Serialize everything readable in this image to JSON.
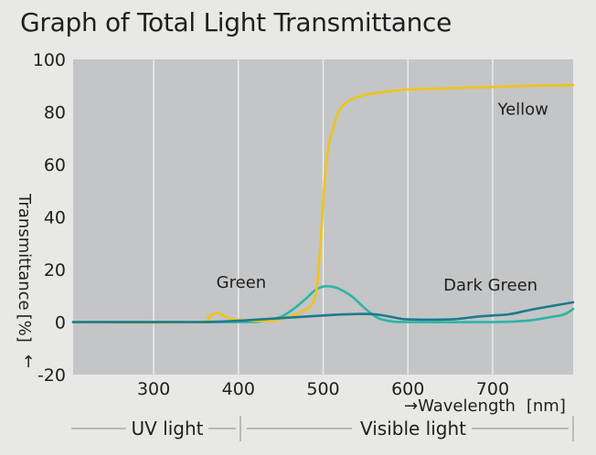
{
  "chart_data": {
    "type": "line",
    "title": "Graph of Total Light Transmittance",
    "xlabel": "→Wavelength",
    "xunit": "[nm]",
    "ylabel": "Transmittance",
    "yunit": "[%]",
    "ylabel_arrow": "↑",
    "xlim": [
      205,
      795
    ],
    "ylim": [
      -20,
      100
    ],
    "xticks": [
      300,
      400,
      500,
      600,
      700
    ],
    "yticks": [
      -20,
      0,
      20,
      40,
      60,
      80,
      100
    ],
    "grid": "vertical",
    "regions": [
      {
        "label": "UV light",
        "from": 205,
        "to": 400
      },
      {
        "label": "Visible light",
        "from": 400,
        "to": 795
      }
    ],
    "series": [
      {
        "name": "Yellow",
        "color": "#f0c419",
        "points": [
          [
            205,
            0
          ],
          [
            350,
            0
          ],
          [
            365,
            2
          ],
          [
            375,
            3.5
          ],
          [
            385,
            2
          ],
          [
            395,
            1
          ],
          [
            420,
            0.5
          ],
          [
            440,
            0.5
          ],
          [
            460,
            2
          ],
          [
            475,
            4
          ],
          [
            485,
            6
          ],
          [
            492,
            12
          ],
          [
            497,
            30
          ],
          [
            502,
            55
          ],
          [
            507,
            68
          ],
          [
            512,
            74
          ],
          [
            518,
            80
          ],
          [
            525,
            83
          ],
          [
            535,
            85
          ],
          [
            550,
            86.5
          ],
          [
            570,
            87.5
          ],
          [
            600,
            88.5
          ],
          [
            650,
            89
          ],
          [
            700,
            89.5
          ],
          [
            750,
            90
          ],
          [
            795,
            90.2
          ]
        ]
      },
      {
        "name": "Green",
        "color": "#2bb5a6",
        "points": [
          [
            205,
            0
          ],
          [
            400,
            0
          ],
          [
            430,
            0.5
          ],
          [
            450,
            2
          ],
          [
            465,
            5
          ],
          [
            480,
            9
          ],
          [
            490,
            12
          ],
          [
            500,
            13.5
          ],
          [
            510,
            13.5
          ],
          [
            520,
            12.5
          ],
          [
            535,
            9.5
          ],
          [
            550,
            5
          ],
          [
            565,
            1.5
          ],
          [
            580,
            0.3
          ],
          [
            600,
            0
          ],
          [
            700,
            0
          ],
          [
            740,
            0.5
          ],
          [
            770,
            2
          ],
          [
            785,
            3
          ],
          [
            795,
            5
          ]
        ]
      },
      {
        "name": "Dark Green",
        "color": "#1b7a8f",
        "points": [
          [
            205,
            0
          ],
          [
            350,
            0
          ],
          [
            400,
            0.5
          ],
          [
            450,
            1.5
          ],
          [
            500,
            2.5
          ],
          [
            530,
            3
          ],
          [
            560,
            3
          ],
          [
            580,
            2
          ],
          [
            600,
            1
          ],
          [
            650,
            1
          ],
          [
            680,
            2
          ],
          [
            700,
            2.5
          ],
          [
            720,
            3
          ],
          [
            750,
            5
          ],
          [
            795,
            7.5
          ]
        ]
      }
    ]
  }
}
